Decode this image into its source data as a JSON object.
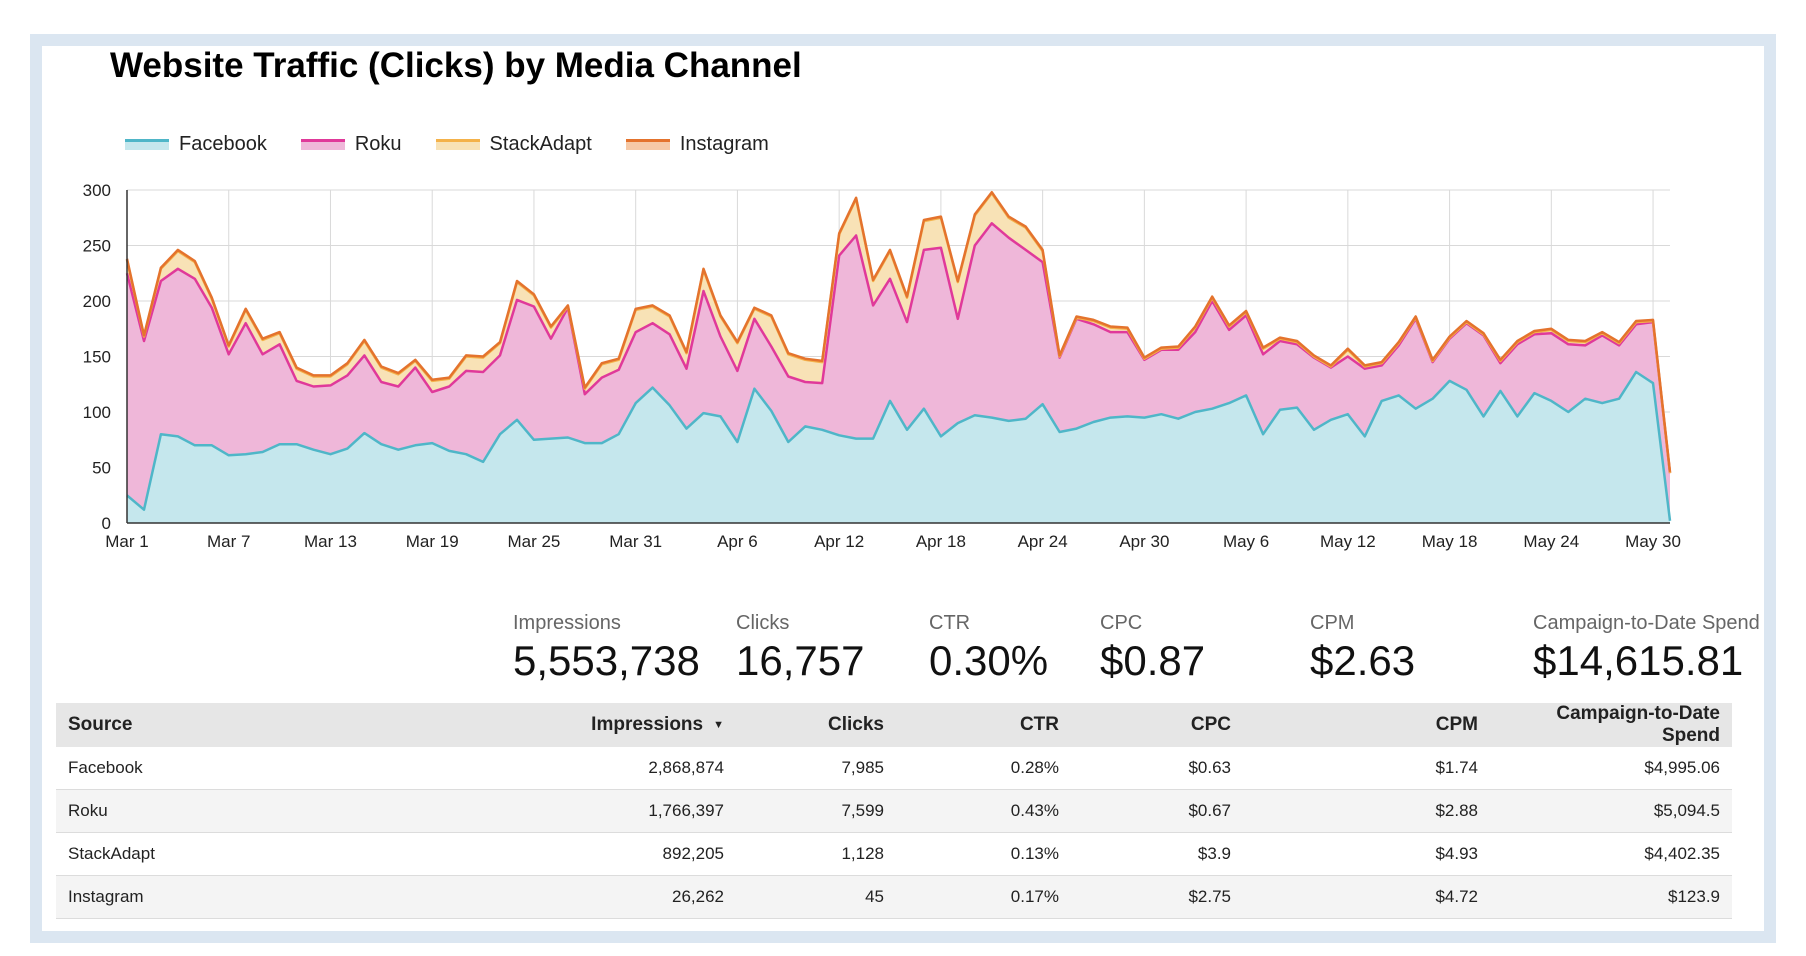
{
  "chart_data": {
    "type": "area",
    "stacked": true,
    "title": "Website Traffic (Clicks) by Media Channel",
    "xlabel": "",
    "ylabel": "",
    "ylim": [
      0,
      300
    ],
    "yticks": [
      0,
      50,
      100,
      150,
      200,
      250,
      300
    ],
    "grid": true,
    "legend_position": "top-left",
    "x_tick_labels": [
      "Mar 1",
      "Mar 7",
      "Mar 13",
      "Mar 19",
      "Mar 25",
      "Mar 31",
      "Apr 6",
      "Apr 12",
      "Apr 18",
      "Apr 24",
      "Apr 30",
      "May 6",
      "May 12",
      "May 18",
      "May 24",
      "May 30"
    ],
    "x": [
      "Mar 1",
      "Mar 2",
      "Mar 3",
      "Mar 4",
      "Mar 5",
      "Mar 6",
      "Mar 7",
      "Mar 8",
      "Mar 9",
      "Mar 10",
      "Mar 11",
      "Mar 12",
      "Mar 13",
      "Mar 14",
      "Mar 15",
      "Mar 16",
      "Mar 17",
      "Mar 18",
      "Mar 19",
      "Mar 20",
      "Mar 21",
      "Mar 22",
      "Mar 23",
      "Mar 24",
      "Mar 25",
      "Mar 26",
      "Mar 27",
      "Mar 28",
      "Mar 29",
      "Mar 30",
      "Mar 31",
      "Apr 1",
      "Apr 2",
      "Apr 3",
      "Apr 4",
      "Apr 5",
      "Apr 6",
      "Apr 7",
      "Apr 8",
      "Apr 9",
      "Apr 10",
      "Apr 11",
      "Apr 12",
      "Apr 13",
      "Apr 14",
      "Apr 15",
      "Apr 16",
      "Apr 17",
      "Apr 18",
      "Apr 19",
      "Apr 20",
      "Apr 21",
      "Apr 22",
      "Apr 23",
      "Apr 24",
      "Apr 25",
      "Apr 26",
      "Apr 27",
      "Apr 28",
      "Apr 29",
      "Apr 30",
      "May 1",
      "May 2",
      "May 3",
      "May 4",
      "May 5",
      "May 6",
      "May 7",
      "May 8",
      "May 9",
      "May 10",
      "May 11",
      "May 12",
      "May 13",
      "May 14",
      "May 15",
      "May 16",
      "May 17",
      "May 18",
      "May 19",
      "May 20",
      "May 21",
      "May 22",
      "May 23",
      "May 24",
      "May 25",
      "May 26",
      "May 27",
      "May 28",
      "May 29",
      "May 30",
      "May 31"
    ],
    "series": [
      {
        "name": "Facebook",
        "color": "#4fb6c8",
        "fill": "#c5e7ed",
        "values": [
          25,
          12,
          80,
          78,
          70,
          70,
          61,
          62,
          64,
          71,
          71,
          66,
          62,
          67,
          81,
          71,
          66,
          70,
          72,
          65,
          62,
          55,
          80,
          93,
          75,
          76,
          77,
          72,
          72,
          80,
          108,
          122,
          106,
          85,
          99,
          96,
          73,
          121,
          101,
          73,
          87,
          84,
          79,
          76,
          76,
          110,
          84,
          103,
          78,
          90,
          97,
          95,
          92,
          94,
          107,
          82,
          85,
          91,
          95,
          96,
          95,
          98,
          94,
          100,
          103,
          108,
          115,
          80,
          102,
          104,
          84,
          93,
          98,
          78,
          110,
          115,
          103,
          112,
          128,
          120,
          96,
          119,
          96,
          117,
          110,
          100,
          112,
          108,
          112,
          136,
          126,
          2
        ]
      },
      {
        "name": "Roku",
        "color": "#e0399a",
        "fill": "#efb7d9",
        "values": [
          200,
          152,
          138,
          151,
          150,
          124,
          91,
          118,
          88,
          90,
          57,
          57,
          62,
          66,
          70,
          56,
          57,
          70,
          46,
          58,
          75,
          81,
          71,
          108,
          120,
          90,
          117,
          44,
          59,
          58,
          64,
          58,
          64,
          54,
          110,
          72,
          64,
          63,
          58,
          59,
          40,
          42,
          162,
          183,
          120,
          110,
          97,
          143,
          170,
          94,
          153,
          175,
          165,
          152,
          128,
          67,
          99,
          88,
          77,
          76,
          52,
          58,
          62,
          72,
          97,
          66,
          72,
          72,
          62,
          57,
          65,
          47,
          52,
          61,
          32,
          45,
          81,
          33,
          38,
          60,
          73,
          25,
          65,
          53,
          61,
          61,
          48,
          61,
          48,
          43,
          55,
          43
        ]
      },
      {
        "name": "StackAdapt",
        "color": "#f4b24a",
        "fill": "#f8e2b6",
        "values": [
          12,
          4,
          11,
          16,
          15,
          8,
          7,
          12,
          13,
          10,
          11,
          9,
          8,
          10,
          13,
          13,
          11,
          6,
          10,
          7,
          13,
          13,
          11,
          16,
          10,
          10,
          1,
          5,
          12,
          9,
          20,
          15,
          16,
          14,
          19,
          18,
          25,
          9,
          27,
          20,
          20,
          19,
          19,
          33,
          22,
          25,
          22,
          26,
          27,
          33,
          27,
          27,
          18,
          20,
          10,
          1,
          1,
          3,
          4,
          3,
          1,
          1,
          2,
          4,
          3,
          3,
          3,
          5,
          2,
          2,
          1,
          1,
          6,
          2,
          2,
          2,
          1,
          1,
          1,
          1,
          1,
          2,
          2,
          2,
          3,
          3,
          3,
          2,
          2,
          2,
          1,
          0
        ]
      },
      {
        "name": "Instagram",
        "color": "#e4732d",
        "fill": "#f6c9a6",
        "values": [
          1,
          1,
          1,
          1,
          1,
          1,
          1,
          1,
          1,
          1,
          1,
          1,
          1,
          1,
          1,
          1,
          1,
          1,
          1,
          1,
          1,
          1,
          1,
          1,
          1,
          1,
          1,
          1,
          1,
          1,
          1,
          1,
          1,
          1,
          1,
          1,
          1,
          1,
          1,
          1,
          1,
          1,
          1,
          1,
          1,
          1,
          1,
          1,
          1,
          1,
          1,
          1,
          1,
          1,
          1,
          1,
          1,
          1,
          1,
          1,
          1,
          1,
          1,
          1,
          1,
          1,
          1,
          1,
          1,
          1,
          1,
          1,
          1,
          1,
          1,
          1,
          1,
          1,
          1,
          1,
          1,
          1,
          1,
          1,
          1,
          1,
          1,
          1,
          1,
          1,
          1,
          1
        ]
      }
    ]
  },
  "kpis": [
    {
      "label": "Impressions",
      "value": "5,553,738"
    },
    {
      "label": "Clicks",
      "value": "16,757"
    },
    {
      "label": "CTR",
      "value": "0.30%"
    },
    {
      "label": "CPC",
      "value": "$0.87"
    },
    {
      "label": "CPM",
      "value": "$2.63"
    },
    {
      "label": "Campaign-to-Date Spend",
      "value": "$14,615.81"
    }
  ],
  "table": {
    "columns": [
      "Source",
      "Impressions",
      "Clicks",
      "CTR",
      "CPC",
      "CPM",
      "Campaign-to-Date Spend"
    ],
    "sort_icon": "sort-descending-icon",
    "rows": [
      [
        "Facebook",
        "2,868,874",
        "7,985",
        "0.28%",
        "$0.63",
        "$1.74",
        "$4,995.06"
      ],
      [
        "Roku",
        "1,766,397",
        "7,599",
        "0.43%",
        "$0.67",
        "$2.88",
        "$5,094.5"
      ],
      [
        "StackAdapt",
        "892,205",
        "1,128",
        "0.13%",
        "$3.9",
        "$4.93",
        "$4,402.35"
      ],
      [
        "Instagram",
        "26,262",
        "45",
        "0.17%",
        "$2.75",
        "$4.72",
        "$123.9"
      ]
    ]
  }
}
